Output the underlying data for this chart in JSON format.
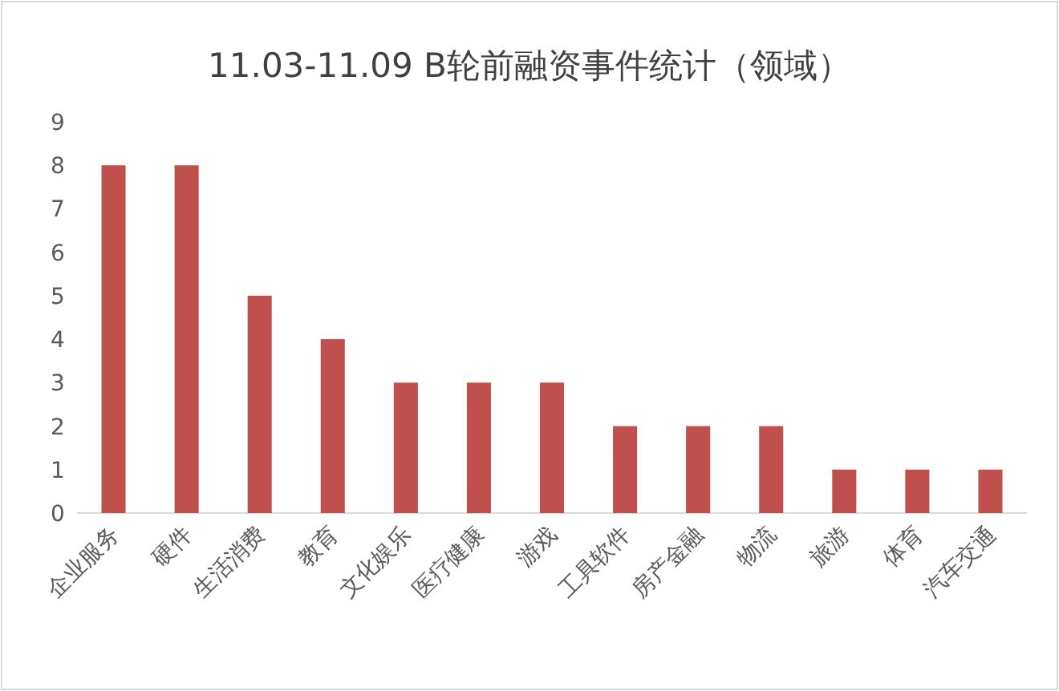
{
  "chart_data": {
    "type": "bar",
    "title": "11.03-11.09 B轮前融资事件统计（领域）",
    "categories": [
      "企业服务",
      "硬件",
      "生活消费",
      "教育",
      "文化娱乐",
      "医疗健康",
      "游戏",
      "工具软件",
      "房产金融",
      "物流",
      "旅游",
      "体育",
      "汽车交通"
    ],
    "values": [
      8,
      8,
      5,
      4,
      3,
      3,
      3,
      2,
      2,
      2,
      1,
      1,
      1
    ],
    "color": "#c0504d",
    "ylim": [
      0,
      9
    ],
    "yticks": [
      0,
      1,
      2,
      3,
      4,
      5,
      6,
      7,
      8,
      9
    ]
  }
}
